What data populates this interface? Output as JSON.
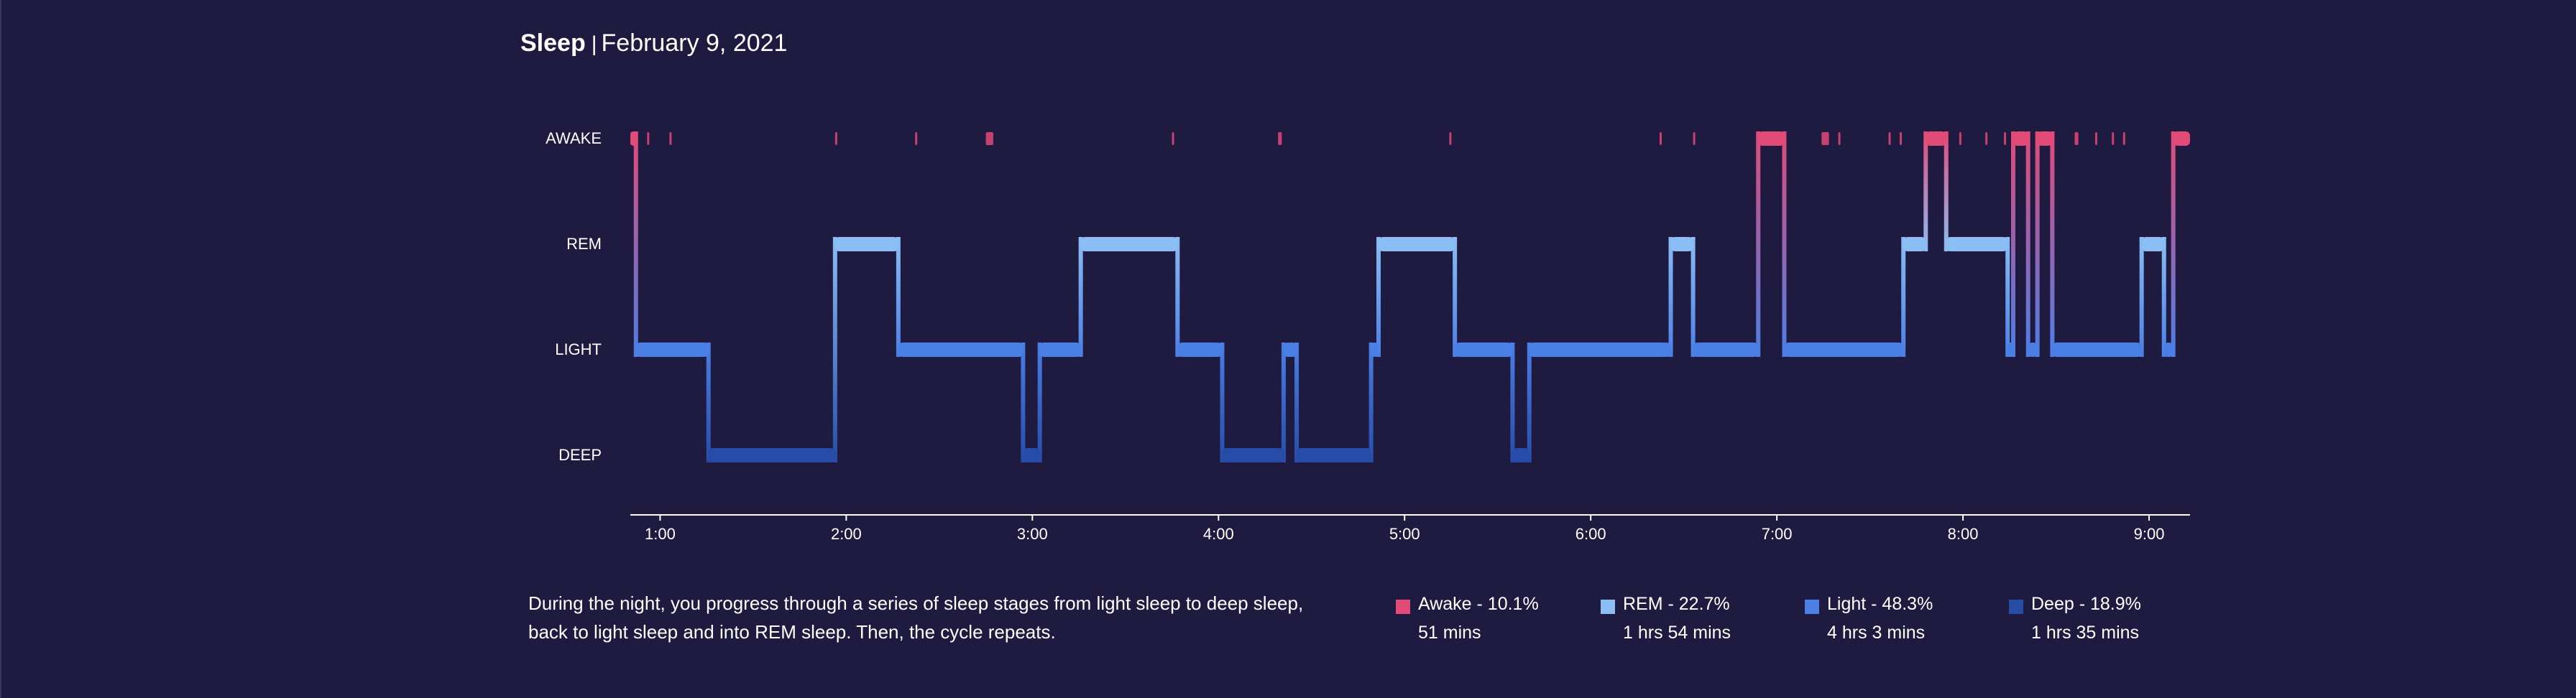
{
  "header": {
    "title": "Sleep",
    "separator": "|",
    "date": "February 9, 2021"
  },
  "chart_data": {
    "type": "area",
    "title": "Sleep | February 9, 2021",
    "stages": [
      "AWAKE",
      "REM",
      "LIGHT",
      "DEEP"
    ],
    "x_ticks": [
      "1:00",
      "2:00",
      "3:00",
      "4:00",
      "5:00",
      "6:00",
      "7:00",
      "8:00",
      "9:00"
    ],
    "x_range_hours": [
      0.84,
      9.22
    ],
    "colors": {
      "AWAKE": "#e24a78",
      "REM": "#8bbef5",
      "LIGHT": "#4a7fe6",
      "DEEP": "#274ca8",
      "axis": "#ffffff",
      "background": "#1f1a3f"
    },
    "segments": [
      {
        "stage": "AWAKE",
        "start": 0.84,
        "end": 0.87
      },
      {
        "stage": "LIGHT",
        "start": 0.87,
        "end": 1.26
      },
      {
        "stage": "DEEP",
        "start": 1.26,
        "end": 1.94
      },
      {
        "stage": "REM",
        "start": 1.94,
        "end": 2.28
      },
      {
        "stage": "LIGHT",
        "start": 2.28,
        "end": 2.95
      },
      {
        "stage": "DEEP",
        "start": 2.95,
        "end": 3.04
      },
      {
        "stage": "LIGHT",
        "start": 3.04,
        "end": 3.26
      },
      {
        "stage": "REM",
        "start": 3.26,
        "end": 3.78
      },
      {
        "stage": "LIGHT",
        "start": 3.78,
        "end": 4.02
      },
      {
        "stage": "DEEP",
        "start": 4.02,
        "end": 4.35
      },
      {
        "stage": "LIGHT",
        "start": 4.35,
        "end": 4.42
      },
      {
        "stage": "DEEP",
        "start": 4.42,
        "end": 4.82
      },
      {
        "stage": "LIGHT",
        "start": 4.82,
        "end": 4.86
      },
      {
        "stage": "REM",
        "start": 4.86,
        "end": 5.27
      },
      {
        "stage": "LIGHT",
        "start": 5.27,
        "end": 5.58
      },
      {
        "stage": "DEEP",
        "start": 5.58,
        "end": 5.67
      },
      {
        "stage": "LIGHT",
        "start": 5.67,
        "end": 6.43
      },
      {
        "stage": "REM",
        "start": 6.43,
        "end": 6.55
      },
      {
        "stage": "LIGHT",
        "start": 6.55,
        "end": 6.9
      },
      {
        "stage": "AWAKE",
        "start": 6.9,
        "end": 7.04
      },
      {
        "stage": "LIGHT",
        "start": 7.04,
        "end": 7.68
      },
      {
        "stage": "REM",
        "start": 7.68,
        "end": 7.8
      },
      {
        "stage": "AWAKE",
        "start": 7.8,
        "end": 7.91
      },
      {
        "stage": "REM",
        "start": 7.91,
        "end": 8.24
      },
      {
        "stage": "LIGHT",
        "start": 8.24,
        "end": 8.27
      },
      {
        "stage": "AWAKE",
        "start": 8.27,
        "end": 8.35
      },
      {
        "stage": "LIGHT",
        "start": 8.35,
        "end": 8.4
      },
      {
        "stage": "AWAKE",
        "start": 8.4,
        "end": 8.48
      },
      {
        "stage": "LIGHT",
        "start": 8.48,
        "end": 8.96
      },
      {
        "stage": "REM",
        "start": 8.96,
        "end": 9.08
      },
      {
        "stage": "LIGHT",
        "start": 9.08,
        "end": 9.13
      },
      {
        "stage": "AWAKE",
        "start": 9.13,
        "end": 9.22
      }
    ],
    "awake_blips": [
      {
        "start": 0.84,
        "end": 0.87
      },
      {
        "start": 0.93,
        "end": 0.94
      },
      {
        "start": 1.05,
        "end": 1.055
      },
      {
        "start": 1.94,
        "end": 1.945
      },
      {
        "start": 2.37,
        "end": 2.375
      },
      {
        "start": 2.75,
        "end": 2.79
      },
      {
        "start": 3.75,
        "end": 3.755
      },
      {
        "start": 4.32,
        "end": 4.34
      },
      {
        "start": 5.24,
        "end": 5.245
      },
      {
        "start": 6.37,
        "end": 6.375
      },
      {
        "start": 6.55,
        "end": 6.555
      },
      {
        "start": 7.24,
        "end": 7.28
      },
      {
        "start": 7.33,
        "end": 7.335
      },
      {
        "start": 7.6,
        "end": 7.605
      },
      {
        "start": 7.66,
        "end": 7.665
      },
      {
        "start": 7.98,
        "end": 7.985
      },
      {
        "start": 8.12,
        "end": 8.125
      },
      {
        "start": 8.22,
        "end": 8.225
      },
      {
        "start": 8.6,
        "end": 8.62
      },
      {
        "start": 8.71,
        "end": 8.715
      },
      {
        "start": 8.8,
        "end": 8.805
      },
      {
        "start": 8.86,
        "end": 8.865
      }
    ]
  },
  "description": "During the night, you progress through a series of sleep stages from light sleep to deep sleep, back to light sleep and into REM sleep. Then, the cycle repeats.",
  "legend": [
    {
      "label": "Awake - 10.1%",
      "duration": "51 mins",
      "color": "#e24a78"
    },
    {
      "label": "REM - 22.7%",
      "duration": "1 hrs 54 mins",
      "color": "#8bbef5"
    },
    {
      "label": "Light - 48.3%",
      "duration": "4 hrs 3 mins",
      "color": "#4a7fe6"
    },
    {
      "label": "Deep - 18.9%",
      "duration": "1 hrs 35 mins",
      "color": "#274ca8"
    }
  ]
}
